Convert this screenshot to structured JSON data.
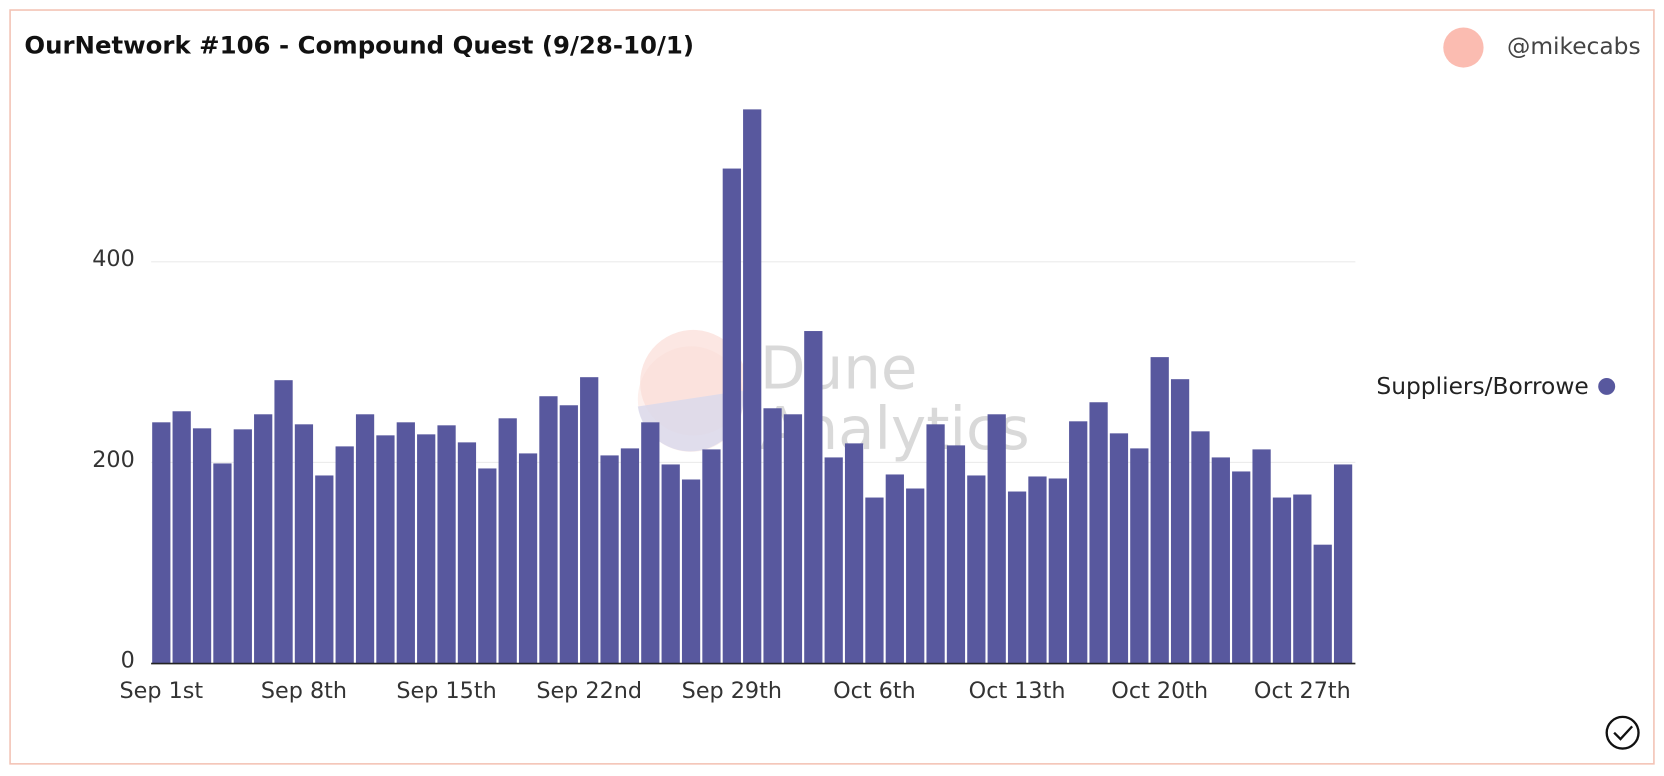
{
  "chart_data": {
    "type": "bar",
    "title": "OurNetwork #106 - Compound Quest (9/28-10/1)",
    "author": "@mikecabs",
    "watermark": [
      "Dune",
      "Analytics"
    ],
    "categories": [
      "Sep 1st",
      null,
      null,
      null,
      null,
      null,
      null,
      "Sep 8th",
      null,
      null,
      null,
      null,
      null,
      null,
      "Sep 15th",
      null,
      null,
      null,
      null,
      null,
      null,
      "Sep 22nd",
      null,
      null,
      null,
      null,
      null,
      null,
      "Sep 29th",
      null,
      null,
      null,
      null,
      null,
      null,
      "Oct 6th",
      null,
      null,
      null,
      null,
      null,
      null,
      "Oct 13th",
      null,
      null,
      null,
      null,
      null,
      null,
      "Oct 20th",
      null,
      null,
      null,
      null,
      null,
      null,
      "Oct 27th",
      null,
      null
    ],
    "series": [
      {
        "name": "Suppliers/Borrowers",
        "color": "#58589e",
        "values": [
          240,
          251,
          234,
          199,
          233,
          248,
          282,
          238,
          187,
          216,
          248,
          227,
          240,
          228,
          237,
          220,
          194,
          244,
          209,
          266,
          257,
          285,
          207,
          214,
          240,
          198,
          183,
          213,
          493,
          552,
          254,
          248,
          331,
          205,
          219,
          165,
          188,
          174,
          238,
          217,
          187,
          248,
          171,
          186,
          184,
          241,
          260,
          229,
          214,
          305,
          283,
          231,
          205,
          191,
          213,
          165,
          168,
          118,
          198
        ]
      }
    ],
    "ylim": [
      0,
      560
    ],
    "yticks": [
      0,
      200,
      400
    ],
    "grid": true,
    "legend": "right"
  }
}
